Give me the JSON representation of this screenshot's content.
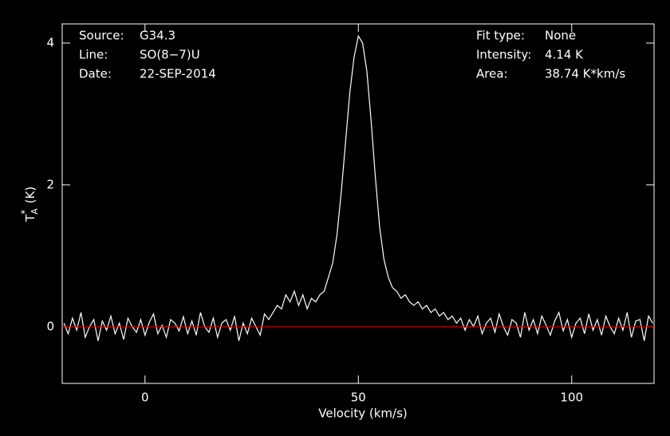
{
  "chart_data": {
    "type": "line",
    "xlabel": "Velocity (km/s)",
    "ylabel": {
      "main": "T",
      "sup": "*",
      "sub": "A",
      "unit": "(K)"
    },
    "xlim": [
      -19.4,
      119.3
    ],
    "ylim": [
      -0.8,
      4.27
    ],
    "xticks": [
      0,
      50,
      100
    ],
    "yticks": [
      0,
      2,
      4
    ],
    "baseline": {
      "value": 0,
      "color": "#c00000"
    },
    "info_left": [
      {
        "label": "Source:",
        "value": "G34.3"
      },
      {
        "label": "Line:",
        "value": "SO(8−7)U"
      },
      {
        "label": "Date:",
        "value": "22-SEP-2014"
      }
    ],
    "info_right": [
      {
        "label": "Fit type:",
        "value": "None"
      },
      {
        "label": "Intensity:",
        "value": "4.14 K"
      },
      {
        "label": "Area:",
        "value": "38.74 K*km/s"
      }
    ],
    "series": [
      {
        "color": "#ffffff",
        "x": [
          -19,
          -18,
          -17,
          -16,
          -15,
          -14,
          -13,
          -12,
          -11,
          -10,
          -9,
          -8,
          -7,
          -6,
          -5,
          -4,
          -3,
          -2,
          -1,
          0,
          1,
          2,
          3,
          4,
          5,
          6,
          7,
          8,
          9,
          10,
          11,
          12,
          13,
          14,
          15,
          16,
          17,
          18,
          19,
          20,
          21,
          22,
          23,
          24,
          25,
          26,
          27,
          28,
          29,
          30,
          31,
          32,
          33,
          34,
          35,
          36,
          37,
          38,
          39,
          40,
          41,
          42,
          43,
          44,
          45,
          46,
          47,
          48,
          49,
          50,
          51,
          52,
          53,
          54,
          55,
          56,
          57,
          58,
          59,
          60,
          61,
          62,
          63,
          64,
          65,
          66,
          67,
          68,
          69,
          70,
          71,
          72,
          73,
          74,
          75,
          76,
          77,
          78,
          79,
          80,
          81,
          82,
          83,
          84,
          85,
          86,
          87,
          88,
          89,
          90,
          91,
          92,
          93,
          94,
          95,
          96,
          97,
          98,
          99,
          100,
          101,
          102,
          103,
          104,
          105,
          106,
          107,
          108,
          109,
          110,
          111,
          112,
          113,
          114,
          115,
          116,
          117,
          118,
          119
        ],
        "values": [
          0.05,
          -0.1,
          0.12,
          -0.05,
          0.2,
          -0.15,
          0.0,
          0.1,
          -0.2,
          0.08,
          -0.05,
          0.15,
          -0.1,
          0.05,
          -0.18,
          0.12,
          0.0,
          -0.08,
          0.1,
          -0.12,
          0.06,
          0.18,
          -0.1,
          0.02,
          -0.15,
          0.1,
          0.05,
          -0.06,
          0.14,
          -0.1,
          0.08,
          -0.12,
          0.2,
          0.0,
          -0.08,
          0.12,
          -0.15,
          0.05,
          0.1,
          -0.05,
          0.15,
          -0.2,
          0.05,
          -0.1,
          0.12,
          0.0,
          -0.12,
          0.18,
          0.1,
          0.2,
          0.3,
          0.25,
          0.45,
          0.35,
          0.5,
          0.3,
          0.45,
          0.25,
          0.4,
          0.35,
          0.45,
          0.5,
          0.7,
          0.9,
          1.3,
          1.9,
          2.6,
          3.3,
          3.8,
          4.1,
          4.0,
          3.6,
          2.9,
          2.1,
          1.4,
          0.95,
          0.7,
          0.55,
          0.5,
          0.4,
          0.45,
          0.35,
          0.3,
          0.35,
          0.25,
          0.3,
          0.2,
          0.25,
          0.15,
          0.2,
          0.1,
          0.15,
          0.05,
          0.12,
          -0.05,
          0.1,
          0.0,
          0.15,
          -0.1,
          0.05,
          0.12,
          -0.08,
          0.18,
          0.0,
          -0.12,
          0.1,
          0.05,
          -0.15,
          0.2,
          -0.05,
          0.1,
          -0.1,
          0.15,
          0.02,
          -0.12,
          0.08,
          0.2,
          -0.06,
          0.1,
          -0.15,
          0.05,
          0.12,
          -0.1,
          0.18,
          -0.05,
          0.1,
          -0.12,
          0.15,
          0.0,
          -0.1,
          0.12,
          -0.05,
          0.2,
          -0.15,
          0.08,
          0.1,
          -0.2,
          0.15,
          0.05
        ]
      }
    ]
  }
}
